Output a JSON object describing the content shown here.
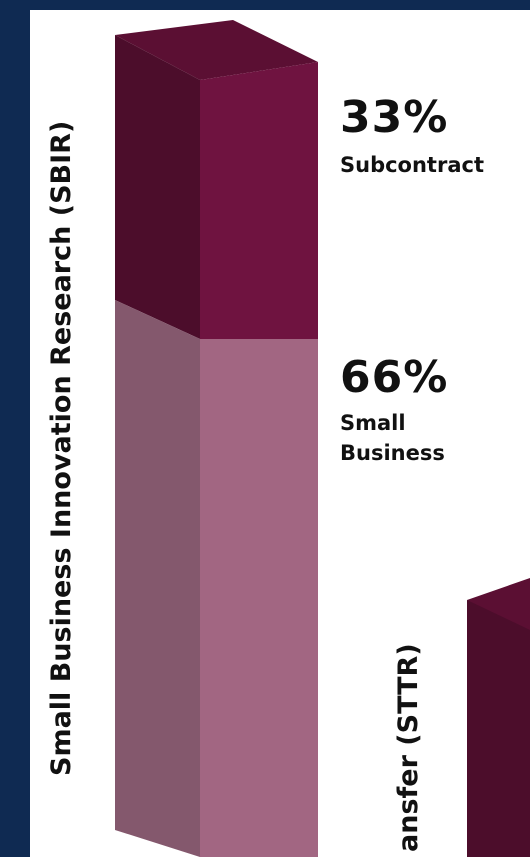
{
  "chart_data": [
    {
      "type": "bar",
      "stacked": true,
      "categories": [
        "Small Business Innovation Research (SBIR)"
      ],
      "series": [
        {
          "name": "Small Business",
          "values": [
            66
          ]
        },
        {
          "name": "Subcontract",
          "values": [
            33
          ]
        }
      ],
      "data_labels": [
        {
          "value": "33%",
          "text": "Subcontract"
        },
        {
          "value": "66%",
          "text_lines": [
            "Small",
            "Business"
          ]
        }
      ],
      "colors": {
        "subcontract_front": "#6f1340",
        "subcontract_side": "#4c0d2b",
        "subcontract_top": "#5b0f33",
        "small_business_front": "#a26682",
        "small_business_side": "#84586d"
      },
      "ylim": [
        0,
        100
      ]
    },
    {
      "type": "bar",
      "stacked": true,
      "categories": [
        "...ansfer (STTR)"
      ],
      "label_visible": "ansfer (STTR)",
      "series": [],
      "colors": {
        "front": "#4c0d2b",
        "top": "#5b0f33"
      },
      "partial": true
    }
  ]
}
